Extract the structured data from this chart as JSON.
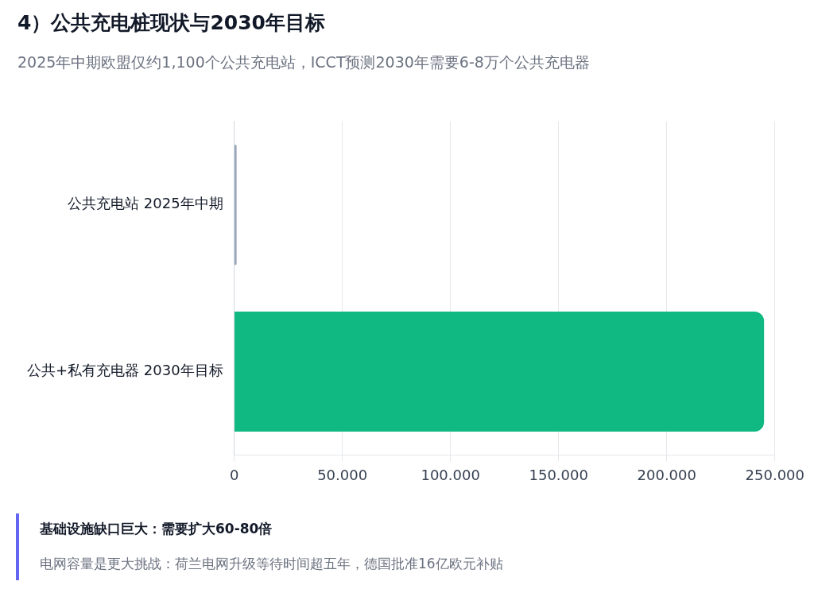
{
  "chart_data": {
    "type": "bar",
    "orientation": "horizontal",
    "title": "4）公共充电桩现状与2030年目标",
    "subtitle": "2025年中期欧盟仅约1,100个公共充电站，ICCT预测2030年需要6-8万个公共充电器",
    "categories": [
      "公共充电站 2025年中期",
      "公共+私有充电器 2030年目标"
    ],
    "values": [
      1100,
      245000
    ],
    "colors": [
      "#94a3b8",
      "#10b981"
    ],
    "xlim": [
      0,
      250000
    ],
    "xticks": [
      0,
      {
        "value": 50000,
        "label": "50.000"
      },
      {
        "value": 100000,
        "label": "100.000"
      },
      {
        "value": 150000,
        "label": "150.000"
      },
      {
        "value": 200000,
        "label": "200.000"
      },
      {
        "value": 250000,
        "label": "250.000"
      }
    ],
    "grid": "x",
    "legend": false,
    "annotations": [
      "基础设施缺口巨大：需要扩大60-80倍",
      "电网容量是更大挑战：荷兰电网升级等待时间超五年，德国批准16亿欧元补贴"
    ]
  }
}
